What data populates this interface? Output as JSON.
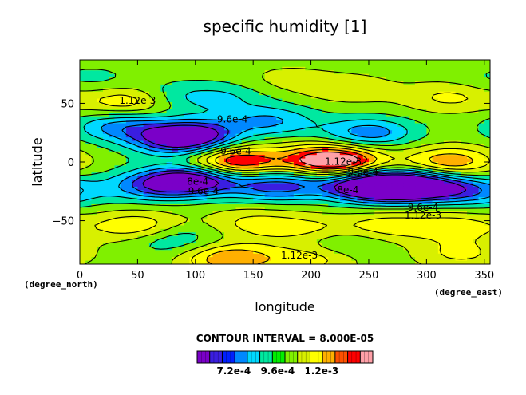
{
  "chart_data": {
    "type": "heatmap",
    "title": "specific humidity [1]",
    "xlabel": "longitude",
    "ylabel": "latitude",
    "x_unit": "(degree_east)",
    "y_unit": "(degree_north)",
    "xlim": [
      0,
      355
    ],
    "ylim": [
      -87,
      87
    ],
    "x_ticks": [
      0,
      50,
      100,
      150,
      200,
      250,
      300,
      350
    ],
    "y_ticks": [
      -50,
      0,
      50
    ],
    "x_tick_labels": [
      "0",
      "50",
      "100",
      "150",
      "200",
      "250",
      "300",
      "350"
    ],
    "y_tick_labels": [
      "−50",
      "0",
      "50"
    ],
    "contour_interval_text": "CONTOUR INTERVAL = 8.000E-05",
    "contour_interval": 8e-05,
    "levels": [
      0.00064,
      0.00072,
      0.0008,
      0.00088,
      0.00096,
      0.00104,
      0.00112,
      0.0012,
      0.00128,
      0.00136
    ],
    "colorbar_colors": [
      "#7a00c8",
      "#3a1ee0",
      "#0020ff",
      "#0088ff",
      "#00d8ff",
      "#00e8a0",
      "#00ee00",
      "#80f000",
      "#d8f000",
      "#ffff00",
      "#ffb000",
      "#ff5000",
      "#ff0000",
      "#ffa0a8"
    ],
    "colorbar_tick_labels": [
      "7.2e-4",
      "9.6e-4",
      "1.2e-3"
    ],
    "colorbar_tick_values": [
      0.00072,
      0.00096,
      0.0012
    ],
    "grid": false,
    "contour_labels": [
      {
        "text": "1.12e-3",
        "lon": 50,
        "lat": 52
      },
      {
        "text": "9.6e-4",
        "lon": 132,
        "lat": 36
      },
      {
        "text": "9.6e-4",
        "lon": 135,
        "lat": 9
      },
      {
        "text": "8e-4",
        "lon": 102,
        "lat": -17
      },
      {
        "text": "9.6e-4",
        "lon": 107,
        "lat": -25
      },
      {
        "text": "1.12e-3",
        "lon": 228,
        "lat": 0
      },
      {
        "text": "9.6e-4",
        "lon": 245,
        "lat": -9
      },
      {
        "text": "8e-4",
        "lon": 232,
        "lat": -24
      },
      {
        "text": "9.6e-4",
        "lon": 297,
        "lat": -39
      },
      {
        "text": "1.12e-3",
        "lon": 297,
        "lat": -46
      },
      {
        "text": "1.12e-3",
        "lon": 190,
        "lat": -80
      }
    ],
    "features": [
      {
        "lon": 45,
        "lat": 52,
        "value": 0.0012
      },
      {
        "lon": 75,
        "lat": 55,
        "value": 0.00088
      },
      {
        "lon": 35,
        "lat": 30,
        "value": 0.0008
      },
      {
        "lon": 85,
        "lat": 18,
        "value": 0.0007
      },
      {
        "lon": 100,
        "lat": 25,
        "value": 0.00076
      },
      {
        "lon": 250,
        "lat": 25,
        "value": 0.00078
      },
      {
        "lon": 165,
        "lat": 35,
        "value": 0.00082
      },
      {
        "lon": 135,
        "lat": 0,
        "value": 0.00134
      },
      {
        "lon": 210,
        "lat": 3,
        "value": 0.0012
      },
      {
        "lon": 225,
        "lat": 0,
        "value": 0.00128
      },
      {
        "lon": 320,
        "lat": 0,
        "value": 0.00124
      },
      {
        "lon": 100,
        "lat": -15,
        "value": 0.00064
      },
      {
        "lon": 65,
        "lat": -20,
        "value": 0.00076
      },
      {
        "lon": 170,
        "lat": -20,
        "value": 0.00072
      },
      {
        "lon": 270,
        "lat": -22,
        "value": 0.00072
      },
      {
        "lon": 245,
        "lat": -20,
        "value": 0.00068
      },
      {
        "lon": 295,
        "lat": -20,
        "value": 0.0007
      },
      {
        "lon": 340,
        "lat": -25,
        "value": 0.0008
      },
      {
        "lon": 50,
        "lat": -55,
        "value": 0.00118
      },
      {
        "lon": 150,
        "lat": -52,
        "value": 0.00112
      },
      {
        "lon": 200,
        "lat": -58,
        "value": 0.00112
      },
      {
        "lon": 265,
        "lat": -55,
        "value": 0.00114
      },
      {
        "lon": 325,
        "lat": -55,
        "value": 0.00114
      },
      {
        "lon": 80,
        "lat": -65,
        "value": 0.00088
      },
      {
        "lon": 225,
        "lat": -68,
        "value": 0.0009
      },
      {
        "lon": 130,
        "lat": -82,
        "value": 0.00124
      },
      {
        "lon": 200,
        "lat": -82,
        "value": 0.00114
      },
      {
        "lon": 330,
        "lat": -78,
        "value": 0.00112
      },
      {
        "lon": 320,
        "lat": 55,
        "value": 0.00112
      },
      {
        "lon": 235,
        "lat": 62,
        "value": 0.00108
      },
      {
        "lon": 180,
        "lat": 70,
        "value": 0.00106
      },
      {
        "lon": 10,
        "lat": 70,
        "value": 0.00094
      },
      {
        "lon": 125,
        "lat": 55,
        "value": 0.0009
      }
    ]
  }
}
